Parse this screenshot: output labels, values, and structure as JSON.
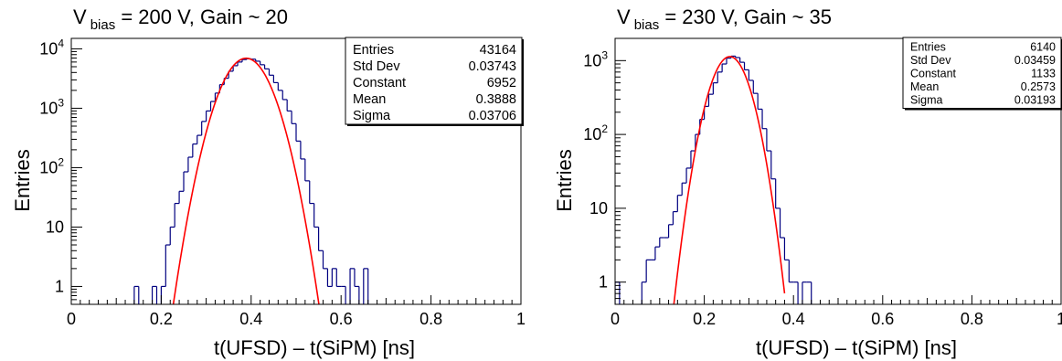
{
  "chart_data": [
    {
      "type": "histogram",
      "title": "V",
      "title_subscript": "bias",
      "title_rest": " = 200 V, Gain ~ 20",
      "xlabel": "t(UFSD) – t(SiPM) [ns]",
      "ylabel": "Entries",
      "xlim": [
        0,
        1
      ],
      "ylim": [
        0.5,
        15000
      ],
      "log_y": true,
      "x_ticks": [
        0,
        0.2,
        0.4,
        0.6,
        0.8,
        1
      ],
      "x_tick_labels": [
        "0",
        "0.2",
        "0.4",
        "0.6",
        "0.8",
        "1"
      ],
      "y_ticks": [
        1,
        10,
        100,
        1000,
        10000
      ],
      "y_tick_labels": [
        "1",
        "10",
        "10^2",
        "10^3",
        "10^4"
      ],
      "grid": false,
      "stats": [
        {
          "label": "Entries",
          "value": "43164"
        },
        {
          "label": "Std Dev",
          "value": "0.03743"
        },
        {
          "label": "Constant",
          "value": "6952"
        },
        {
          "label": "Mean",
          "value": "0.3888"
        },
        {
          "label": "Sigma",
          "value": "0.03706"
        }
      ],
      "stats_position": "top-right",
      "hist_color": "#000080",
      "fit_color": "#ff0000",
      "fit": {
        "constant": 6952,
        "mean": 0.3888,
        "sigma": 0.03706,
        "range": [
          0.2,
          0.56
        ]
      },
      "hist": [
        [
          0.14,
          1
        ],
        [
          0.15,
          0.4
        ],
        [
          0.18,
          1
        ],
        [
          0.19,
          0.4
        ],
        [
          0.2,
          1
        ],
        [
          0.21,
          5
        ],
        [
          0.22,
          10
        ],
        [
          0.23,
          25
        ],
        [
          0.24,
          40
        ],
        [
          0.25,
          85
        ],
        [
          0.26,
          150
        ],
        [
          0.27,
          250
        ],
        [
          0.28,
          350
        ],
        [
          0.29,
          600
        ],
        [
          0.3,
          900
        ],
        [
          0.31,
          1300
        ],
        [
          0.32,
          1800
        ],
        [
          0.33,
          2500
        ],
        [
          0.34,
          3200
        ],
        [
          0.35,
          4200
        ],
        [
          0.36,
          5200
        ],
        [
          0.37,
          6000
        ],
        [
          0.38,
          6600
        ],
        [
          0.39,
          6800
        ],
        [
          0.4,
          6700
        ],
        [
          0.41,
          6200
        ],
        [
          0.42,
          5400
        ],
        [
          0.43,
          4600
        ],
        [
          0.44,
          3600
        ],
        [
          0.45,
          2700
        ],
        [
          0.46,
          2000
        ],
        [
          0.47,
          1400
        ],
        [
          0.48,
          900
        ],
        [
          0.49,
          550
        ],
        [
          0.5,
          280
        ],
        [
          0.51,
          140
        ],
        [
          0.52,
          60
        ],
        [
          0.53,
          25
        ],
        [
          0.54,
          10
        ],
        [
          0.55,
          4
        ],
        [
          0.56,
          2
        ],
        [
          0.57,
          1
        ],
        [
          0.58,
          2
        ],
        [
          0.59,
          1
        ],
        [
          0.6,
          1
        ],
        [
          0.61,
          0.4
        ],
        [
          0.62,
          2
        ],
        [
          0.63,
          1
        ],
        [
          0.64,
          0.4
        ],
        [
          0.65,
          2
        ],
        [
          0.66,
          0.4
        ]
      ]
    },
    {
      "type": "histogram",
      "title": "V",
      "title_subscript": "bias",
      "title_rest": " = 230 V, Gain ~ 35",
      "xlabel": "t(UFSD) – t(SiPM) [ns]",
      "ylabel": "Entries",
      "xlim": [
        0,
        1
      ],
      "ylim": [
        0.5,
        2000
      ],
      "log_y": true,
      "x_ticks": [
        0,
        0.2,
        0.4,
        0.6,
        0.8,
        1
      ],
      "x_tick_labels": [
        "0",
        "0.2",
        "0.4",
        "0.6",
        "0.8",
        "1"
      ],
      "y_ticks": [
        1,
        10,
        100,
        1000
      ],
      "y_tick_labels": [
        "1",
        "10",
        "10^2",
        "10^3"
      ],
      "grid": false,
      "stats": [
        {
          "label": "Entries",
          "value": "6140"
        },
        {
          "label": "Std Dev",
          "value": "0.03459"
        },
        {
          "label": "Constant",
          "value": "1133"
        },
        {
          "label": "Mean",
          "value": "0.2573"
        },
        {
          "label": "Sigma",
          "value": "0.03193"
        }
      ],
      "stats_position": "top-right",
      "hist_color": "#000080",
      "fit_color": "#ff0000",
      "fit": {
        "constant": 1133,
        "mean": 0.2573,
        "sigma": 0.03193,
        "range": [
          0.12,
          0.38
        ]
      },
      "hist": [
        [
          0.0,
          1
        ],
        [
          0.01,
          0.4
        ],
        [
          0.06,
          1
        ],
        [
          0.07,
          2
        ],
        [
          0.08,
          2
        ],
        [
          0.09,
          3
        ],
        [
          0.1,
          4
        ],
        [
          0.11,
          4
        ],
        [
          0.12,
          6
        ],
        [
          0.13,
          9
        ],
        [
          0.14,
          15
        ],
        [
          0.15,
          22
        ],
        [
          0.16,
          35
        ],
        [
          0.17,
          60
        ],
        [
          0.18,
          100
        ],
        [
          0.19,
          160
        ],
        [
          0.2,
          240
        ],
        [
          0.21,
          350
        ],
        [
          0.22,
          500
        ],
        [
          0.23,
          700
        ],
        [
          0.24,
          900
        ],
        [
          0.25,
          1080
        ],
        [
          0.26,
          1150
        ],
        [
          0.27,
          1100
        ],
        [
          0.28,
          950
        ],
        [
          0.29,
          750
        ],
        [
          0.3,
          540
        ],
        [
          0.31,
          360
        ],
        [
          0.32,
          220
        ],
        [
          0.33,
          120
        ],
        [
          0.34,
          60
        ],
        [
          0.35,
          25
        ],
        [
          0.36,
          10
        ],
        [
          0.37,
          4
        ],
        [
          0.38,
          2
        ],
        [
          0.39,
          1
        ],
        [
          0.4,
          1
        ],
        [
          0.41,
          0.4
        ],
        [
          0.42,
          1
        ],
        [
          0.43,
          1
        ],
        [
          0.44,
          0.4
        ]
      ]
    }
  ]
}
